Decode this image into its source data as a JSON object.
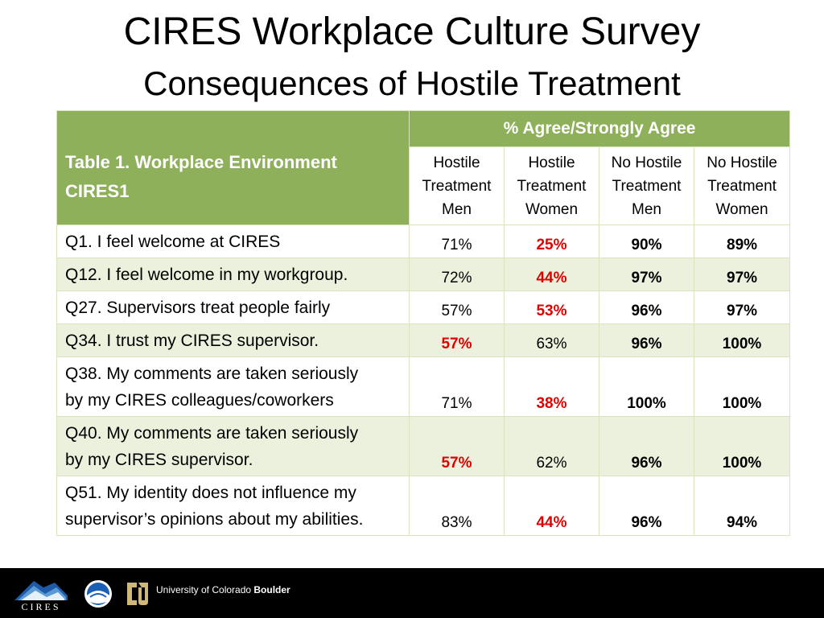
{
  "title": "CIRES Workplace Culture Survey",
  "subtitle": "Consequences of Hostile Treatment",
  "table": {
    "corner_line1": "Table 1. Workplace Environment",
    "corner_line2": "CIRES1",
    "group_header": "% Agree/Strongly Agree",
    "columns": [
      {
        "l1": "Hostile",
        "l2": "Treatment",
        "l3": "Men"
      },
      {
        "l1": "Hostile",
        "l2": "Treatment",
        "l3": "Women"
      },
      {
        "l1": "No Hostile",
        "l2": "Treatment",
        "l3": "Men"
      },
      {
        "l1": "No Hostile",
        "l2": "Treatment",
        "l3": "Women"
      }
    ],
    "rows": [
      {
        "q": [
          "Q1. I feel welcome at CIRES"
        ],
        "v": [
          "71%",
          "25%",
          "90%",
          "89%"
        ],
        "style": [
          "n",
          "r",
          "b",
          "b"
        ]
      },
      {
        "q": [
          "Q12. I feel welcome in my workgroup."
        ],
        "v": [
          "72%",
          "44%",
          "97%",
          "97%"
        ],
        "style": [
          "n",
          "r",
          "b",
          "b"
        ]
      },
      {
        "q": [
          "Q27. Supervisors treat people fairly"
        ],
        "v": [
          "57%",
          "53%",
          "96%",
          "97%"
        ],
        "style": [
          "n",
          "r",
          "b",
          "b"
        ]
      },
      {
        "q": [
          "Q34. I trust my CIRES supervisor."
        ],
        "v": [
          "57%",
          "63%",
          "96%",
          "100%"
        ],
        "style": [
          "r",
          "n",
          "b",
          "b"
        ]
      },
      {
        "q": [
          "Q38. My comments are taken seriously",
          "by my CIRES colleagues/coworkers"
        ],
        "v": [
          "71%",
          "38%",
          "100%",
          "100%"
        ],
        "style": [
          "n",
          "r",
          "b",
          "b"
        ]
      },
      {
        "q": [
          "Q40. My comments are taken seriously",
          "by my CIRES supervisor."
        ],
        "v": [
          "57%",
          "62%",
          "96%",
          "100%"
        ],
        "style": [
          "r",
          "n",
          "b",
          "b"
        ]
      },
      {
        "q": [
          "Q51. My identity does not influence my",
          "supervisor’s opinions about my abilities."
        ],
        "v": [
          "83%",
          "44%",
          "96%",
          "94%"
        ],
        "style": [
          "n",
          "r",
          "b",
          "b"
        ]
      }
    ]
  },
  "footer": {
    "cires_logo_text": "CIRES",
    "noaa_logo_text": "NOAA",
    "cu_text_regular": "University of Colorado ",
    "cu_text_bold": "Boulder"
  },
  "colors": {
    "header_green": "#8fb05a",
    "alt_row": "#ebf1dd",
    "highlight_red": "#e00000"
  }
}
